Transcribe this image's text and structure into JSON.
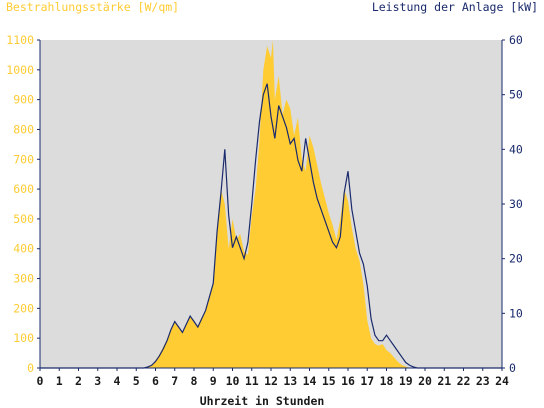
{
  "chart_data": {
    "type": "area",
    "left_axis_title": "Bestrahlungsstärke [W/qm]",
    "right_axis_title": "Leistung der Anlage [kW]",
    "xlabel": "Uhrzeit in Stunden",
    "xlim": [
      0,
      24
    ],
    "x_ticks": [
      "0",
      "1",
      "2",
      "3",
      "4",
      "5",
      "6",
      "7",
      "8",
      "9",
      "10",
      "11",
      "12",
      "13",
      "14",
      "15",
      "16",
      "17",
      "18",
      "19",
      "20",
      "21",
      "22",
      "23",
      "24"
    ],
    "ylim_left": [
      0,
      1100
    ],
    "y_ticks_left": [
      "0",
      "100",
      "200",
      "300",
      "400",
      "500",
      "600",
      "700",
      "800",
      "900",
      "1000",
      "1100"
    ],
    "ylim_right": [
      0,
      60
    ],
    "y_ticks_right": [
      "0",
      "10",
      "20",
      "30",
      "40",
      "50",
      "60"
    ],
    "grid": false,
    "colors": {
      "background": "#dcdcdc",
      "irradiance_fill": "#ffcc33",
      "power_line": "#1a2a6c",
      "left_axis_text": "#ffcc33",
      "right_axis_text": "#1a2a6c",
      "axis": "#1a2a6c"
    },
    "series": [
      {
        "kind": "area",
        "axis": "left",
        "x": [
          0,
          5.4,
          5.6,
          5.8,
          6.0,
          6.2,
          6.4,
          6.6,
          6.8,
          7.0,
          7.2,
          7.4,
          7.6,
          7.8,
          8.0,
          8.2,
          8.4,
          8.6,
          8.8,
          9.0,
          9.2,
          9.4,
          9.6,
          9.8,
          10.0,
          10.2,
          10.4,
          10.6,
          10.8,
          11.0,
          11.2,
          11.4,
          11.6,
          11.8,
          12.0,
          12.1,
          12.2,
          12.4,
          12.6,
          12.8,
          13.0,
          13.2,
          13.4,
          13.6,
          13.8,
          14.0,
          14.2,
          14.4,
          14.6,
          14.8,
          15.0,
          15.2,
          15.4,
          15.6,
          15.8,
          16.0,
          16.2,
          16.4,
          16.6,
          16.8,
          17.0,
          17.2,
          17.4,
          17.6,
          17.8,
          18.0,
          18.2,
          18.4,
          18.6,
          18.8,
          19.0,
          19.2,
          19.4,
          19.6,
          19.8,
          20.0,
          24
        ],
        "values": [
          0,
          0,
          5,
          10,
          25,
          45,
          70,
          95,
          130,
          155,
          140,
          120,
          150,
          175,
          160,
          140,
          170,
          190,
          240,
          280,
          450,
          600,
          550,
          400,
          500,
          430,
          450,
          390,
          380,
          510,
          600,
          760,
          1000,
          1080,
          1040,
          1100,
          900,
          980,
          850,
          900,
          870,
          780,
          840,
          700,
          660,
          780,
          740,
          680,
          620,
          570,
          520,
          480,
          430,
          500,
          600,
          560,
          470,
          400,
          360,
          280,
          160,
          100,
          80,
          75,
          80,
          60,
          50,
          35,
          20,
          10,
          5,
          0,
          0,
          0,
          0,
          0,
          0
        ]
      },
      {
        "kind": "line",
        "axis": "right",
        "x": [
          0,
          5.4,
          5.6,
          5.8,
          6.0,
          6.2,
          6.4,
          6.6,
          6.8,
          7.0,
          7.2,
          7.4,
          7.6,
          7.8,
          8.0,
          8.2,
          8.4,
          8.6,
          8.8,
          9.0,
          9.2,
          9.4,
          9.6,
          9.8,
          10.0,
          10.2,
          10.4,
          10.6,
          10.8,
          11.0,
          11.2,
          11.4,
          11.6,
          11.8,
          12.0,
          12.2,
          12.4,
          12.6,
          12.8,
          13.0,
          13.2,
          13.4,
          13.6,
          13.8,
          14.0,
          14.2,
          14.4,
          14.6,
          14.8,
          15.0,
          15.2,
          15.4,
          15.6,
          15.8,
          16.0,
          16.2,
          16.4,
          16.6,
          16.8,
          17.0,
          17.2,
          17.4,
          17.6,
          17.8,
          18.0,
          18.2,
          18.4,
          18.6,
          18.8,
          19.0,
          19.2,
          19.4,
          19.6,
          19.8,
          20.0,
          24
        ],
        "values": [
          0,
          0,
          0.2,
          0.5,
          1.2,
          2.2,
          3.5,
          5.0,
          7.0,
          8.5,
          7.5,
          6.5,
          8.0,
          9.5,
          8.5,
          7.5,
          9.0,
          10.5,
          13.0,
          15.5,
          25,
          32,
          40,
          28,
          22,
          24,
          22,
          20,
          23,
          30,
          38,
          45,
          50,
          52,
          46,
          42,
          48,
          46,
          44,
          41,
          42,
          38,
          36,
          42,
          38,
          34,
          31,
          29,
          27,
          25,
          23,
          22,
          24,
          32,
          36,
          29,
          25,
          21,
          19,
          15,
          9,
          6,
          5,
          5,
          6,
          5,
          4,
          3,
          2,
          1,
          0.5,
          0.2,
          0,
          0,
          0,
          0
        ]
      }
    ]
  }
}
